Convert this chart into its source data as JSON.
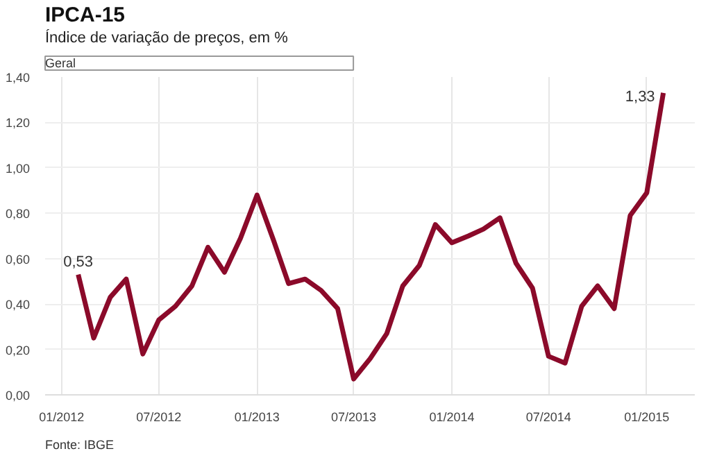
{
  "chart_data": {
    "type": "line",
    "title": "IPCA-15",
    "subtitle": "Índice de variação de preços, em %",
    "annotations": [
      "Geral",
      "Fonte: IBGE"
    ],
    "x": [
      "2012-02",
      "2012-03",
      "2012-04",
      "2012-05",
      "2012-06",
      "2012-07",
      "2012-08",
      "2012-09",
      "2012-10",
      "2012-11",
      "2012-12",
      "2013-01",
      "2013-02",
      "2013-03",
      "2013-04",
      "2013-05",
      "2013-06",
      "2013-07",
      "2013-08",
      "2013-09",
      "2013-10",
      "2013-11",
      "2013-12",
      "2014-01",
      "2014-02",
      "2014-03",
      "2014-04",
      "2014-05",
      "2014-06",
      "2014-07",
      "2014-08",
      "2014-09",
      "2014-10",
      "2014-11",
      "2014-12",
      "2015-01",
      "2015-02"
    ],
    "series": [
      {
        "color": "#8b0a2a",
        "values": [
          0.53,
          0.25,
          0.43,
          0.51,
          0.18,
          0.33,
          0.39,
          0.48,
          0.65,
          0.54,
          0.69,
          0.88,
          0.68,
          0.49,
          0.51,
          0.46,
          0.38,
          0.07,
          0.16,
          0.27,
          0.48,
          0.57,
          0.75,
          0.67,
          0.7,
          0.73,
          0.78,
          0.58,
          0.47,
          0.17,
          0.14,
          0.39,
          0.48,
          0.38,
          0.79,
          0.89,
          1.33
        ],
        "value_labels": [
          "0,53",
          null,
          null,
          null,
          null,
          null,
          null,
          null,
          null,
          null,
          null,
          null,
          null,
          null,
          null,
          null,
          null,
          null,
          null,
          null,
          null,
          null,
          null,
          null,
          null,
          null,
          null,
          null,
          null,
          null,
          null,
          null,
          null,
          null,
          null,
          null,
          "1,33"
        ]
      }
    ],
    "xlim": [
      "2011-12-01",
      "2015-04-01"
    ],
    "xticks": [
      {
        "value": "2012-01",
        "label": "01/2012"
      },
      {
        "value": "2012-07",
        "label": "07/2012"
      },
      {
        "value": "2013-01",
        "label": "01/2013"
      },
      {
        "value": "2013-07",
        "label": "07/2013"
      },
      {
        "value": "2014-01",
        "label": "01/2014"
      },
      {
        "value": "2014-07",
        "label": "07/2014"
      },
      {
        "value": "2015-01",
        "label": "01/2015"
      }
    ],
    "ylim": [
      0,
      1.4
    ],
    "yticks": [
      {
        "value": 0,
        "label": "0,00"
      },
      {
        "value": 0.2,
        "label": "0,20"
      },
      {
        "value": 0.4,
        "label": "0,40"
      },
      {
        "value": 0.6,
        "label": "0,60"
      },
      {
        "value": 0.8,
        "label": "0,80"
      },
      {
        "value": 1.0,
        "label": "1,00"
      },
      {
        "value": 1.2,
        "label": "1,20"
      },
      {
        "value": 1.4,
        "label": "1,40"
      }
    ],
    "grid": true,
    "line_style": "solid"
  }
}
